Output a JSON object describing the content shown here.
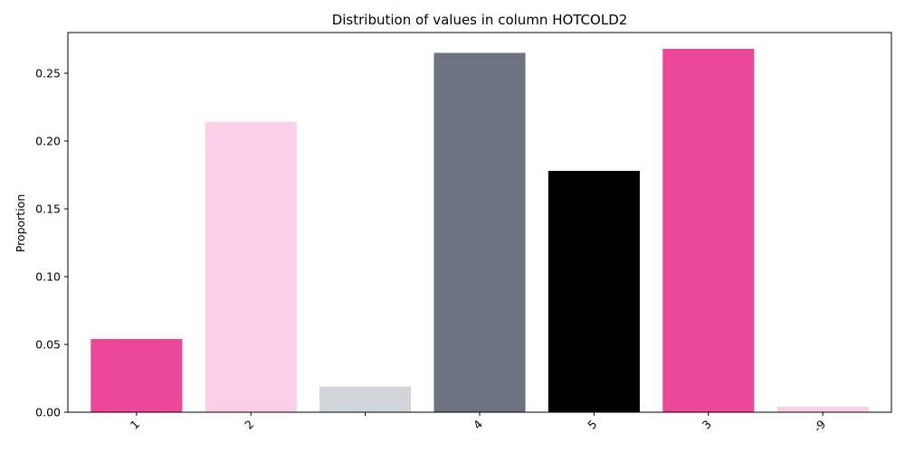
{
  "chart_data": {
    "type": "bar",
    "title": "Distribution of values in column HOTCOLD2",
    "xlabel": "",
    "ylabel": "Proportion",
    "categories": [
      "1",
      "2",
      "",
      "4",
      "5",
      "3",
      "-9"
    ],
    "values": [
      0.054,
      0.214,
      0.019,
      0.265,
      0.178,
      0.268,
      0.004
    ],
    "colors": [
      "#ec4899",
      "#fbcfe8",
      "#d1d5db",
      "#6b7280",
      "#000000",
      "#ec4899",
      "#fbcfe8"
    ],
    "ylim": [
      0,
      0.28
    ],
    "yticks": [
      "0.00",
      "0.05",
      "0.10",
      "0.15",
      "0.20",
      "0.25"
    ],
    "grid": false,
    "legend": "none"
  }
}
